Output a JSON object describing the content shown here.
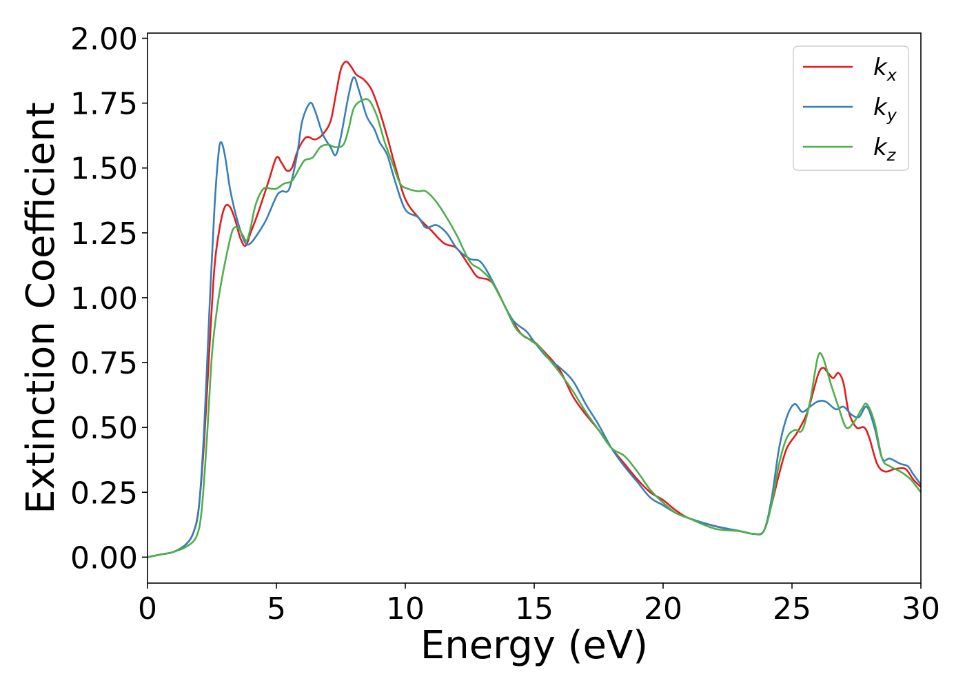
{
  "chart_data": {
    "type": "line",
    "title": "",
    "xlabel": "Energy (eV)",
    "ylabel": "Extinction Coefficient",
    "xlim": [
      0,
      30
    ],
    "ylim": [
      -0.1,
      2.02
    ],
    "xticks": [
      0,
      5,
      10,
      15,
      20,
      25,
      30
    ],
    "xtick_labels": [
      "0",
      "5",
      "10",
      "15",
      "20",
      "25",
      "30"
    ],
    "yticks": [
      0.0,
      0.25,
      0.5,
      0.75,
      1.0,
      1.25,
      1.5,
      1.75,
      2.0
    ],
    "ytick_labels": [
      "0.00",
      "0.25",
      "0.50",
      "0.75",
      "1.00",
      "1.25",
      "1.50",
      "1.75",
      "2.00"
    ],
    "grid": false,
    "legend_position": "top-right",
    "series": [
      {
        "name": "k",
        "subscript": "x",
        "color": "#e41a1c",
        "points": [
          [
            0,
            0
          ],
          [
            0.5,
            0.01
          ],
          [
            1,
            0.02
          ],
          [
            1.5,
            0.05
          ],
          [
            1.8,
            0.1
          ],
          [
            2,
            0.2
          ],
          [
            2.2,
            0.45
          ],
          [
            2.4,
            0.8
          ],
          [
            2.6,
            1.12
          ],
          [
            2.8,
            1.27
          ],
          [
            3,
            1.35
          ],
          [
            3.2,
            1.35
          ],
          [
            3.4,
            1.3
          ],
          [
            3.6,
            1.23
          ],
          [
            3.8,
            1.2
          ],
          [
            4,
            1.25
          ],
          [
            4.3,
            1.33
          ],
          [
            4.7,
            1.45
          ],
          [
            5,
            1.54
          ],
          [
            5.2,
            1.52
          ],
          [
            5.4,
            1.49
          ],
          [
            5.6,
            1.5
          ],
          [
            5.8,
            1.56
          ],
          [
            6,
            1.6
          ],
          [
            6.2,
            1.62
          ],
          [
            6.5,
            1.61
          ],
          [
            6.8,
            1.63
          ],
          [
            7.1,
            1.68
          ],
          [
            7.3,
            1.78
          ],
          [
            7.5,
            1.88
          ],
          [
            7.7,
            1.91
          ],
          [
            7.9,
            1.89
          ],
          [
            8.1,
            1.86
          ],
          [
            8.4,
            1.84
          ],
          [
            8.7,
            1.8
          ],
          [
            9,
            1.72
          ],
          [
            9.3,
            1.62
          ],
          [
            9.6,
            1.51
          ],
          [
            10,
            1.38
          ],
          [
            10.5,
            1.31
          ],
          [
            11,
            1.26
          ],
          [
            11.5,
            1.21
          ],
          [
            12,
            1.19
          ],
          [
            12.5,
            1.12
          ],
          [
            12.8,
            1.08
          ],
          [
            13.2,
            1.07
          ],
          [
            13.5,
            1.04
          ],
          [
            14,
            0.94
          ],
          [
            14.5,
            0.86
          ],
          [
            15,
            0.83
          ],
          [
            15.5,
            0.78
          ],
          [
            16,
            0.72
          ],
          [
            16.5,
            0.62
          ],
          [
            17,
            0.55
          ],
          [
            17.5,
            0.49
          ],
          [
            18,
            0.42
          ],
          [
            18.5,
            0.36
          ],
          [
            19,
            0.3
          ],
          [
            19.5,
            0.25
          ],
          [
            20,
            0.22
          ],
          [
            20.5,
            0.18
          ],
          [
            21,
            0.15
          ],
          [
            22,
            0.12
          ],
          [
            23,
            0.1
          ],
          [
            23.5,
            0.09
          ],
          [
            23.9,
            0.1
          ],
          [
            24.2,
            0.2
          ],
          [
            24.5,
            0.32
          ],
          [
            24.8,
            0.42
          ],
          [
            25.2,
            0.48
          ],
          [
            25.6,
            0.56
          ],
          [
            26,
            0.7
          ],
          [
            26.2,
            0.73
          ],
          [
            26.4,
            0.71
          ],
          [
            26.6,
            0.69
          ],
          [
            26.8,
            0.71
          ],
          [
            27,
            0.67
          ],
          [
            27.2,
            0.56
          ],
          [
            27.5,
            0.5
          ],
          [
            27.8,
            0.5
          ],
          [
            28,
            0.46
          ],
          [
            28.3,
            0.36
          ],
          [
            28.6,
            0.33
          ],
          [
            29,
            0.34
          ],
          [
            29.4,
            0.34
          ],
          [
            29.7,
            0.3
          ],
          [
            30,
            0.27
          ]
        ]
      },
      {
        "name": "k",
        "subscript": "y",
        "color": "#377eb8",
        "points": [
          [
            0,
            0
          ],
          [
            0.5,
            0.01
          ],
          [
            1,
            0.02
          ],
          [
            1.5,
            0.05
          ],
          [
            1.8,
            0.1
          ],
          [
            2,
            0.2
          ],
          [
            2.2,
            0.5
          ],
          [
            2.4,
            0.95
          ],
          [
            2.6,
            1.35
          ],
          [
            2.75,
            1.55
          ],
          [
            2.85,
            1.6
          ],
          [
            3,
            1.55
          ],
          [
            3.2,
            1.42
          ],
          [
            3.4,
            1.33
          ],
          [
            3.6,
            1.26
          ],
          [
            3.8,
            1.21
          ],
          [
            4,
            1.21
          ],
          [
            4.3,
            1.25
          ],
          [
            4.6,
            1.3
          ],
          [
            5,
            1.39
          ],
          [
            5.2,
            1.41
          ],
          [
            5.5,
            1.42
          ],
          [
            5.8,
            1.55
          ],
          [
            6,
            1.68
          ],
          [
            6.3,
            1.75
          ],
          [
            6.5,
            1.72
          ],
          [
            6.8,
            1.63
          ],
          [
            7.1,
            1.58
          ],
          [
            7.3,
            1.55
          ],
          [
            7.5,
            1.62
          ],
          [
            7.8,
            1.78
          ],
          [
            8,
            1.85
          ],
          [
            8.2,
            1.8
          ],
          [
            8.5,
            1.7
          ],
          [
            8.8,
            1.65
          ],
          [
            9,
            1.6
          ],
          [
            9.3,
            1.55
          ],
          [
            9.6,
            1.45
          ],
          [
            10,
            1.34
          ],
          [
            10.5,
            1.31
          ],
          [
            10.8,
            1.27
          ],
          [
            11.2,
            1.28
          ],
          [
            11.6,
            1.25
          ],
          [
            12,
            1.19
          ],
          [
            12.5,
            1.15
          ],
          [
            12.9,
            1.14
          ],
          [
            13.3,
            1.08
          ],
          [
            13.8,
            0.98
          ],
          [
            14.2,
            0.91
          ],
          [
            14.7,
            0.87
          ],
          [
            15,
            0.83
          ],
          [
            15.5,
            0.77
          ],
          [
            16,
            0.73
          ],
          [
            16.5,
            0.68
          ],
          [
            17,
            0.59
          ],
          [
            17.5,
            0.51
          ],
          [
            18,
            0.42
          ],
          [
            18.5,
            0.35
          ],
          [
            19,
            0.29
          ],
          [
            19.5,
            0.23
          ],
          [
            20,
            0.2
          ],
          [
            20.5,
            0.17
          ],
          [
            21,
            0.15
          ],
          [
            22,
            0.12
          ],
          [
            23,
            0.1
          ],
          [
            23.5,
            0.09
          ],
          [
            23.9,
            0.1
          ],
          [
            24.2,
            0.22
          ],
          [
            24.5,
            0.42
          ],
          [
            24.8,
            0.54
          ],
          [
            25.1,
            0.59
          ],
          [
            25.4,
            0.56
          ],
          [
            25.7,
            0.58
          ],
          [
            26,
            0.6
          ],
          [
            26.3,
            0.6
          ],
          [
            26.7,
            0.57
          ],
          [
            27,
            0.58
          ],
          [
            27.3,
            0.55
          ],
          [
            27.6,
            0.54
          ],
          [
            27.9,
            0.58
          ],
          [
            28.2,
            0.5
          ],
          [
            28.5,
            0.38
          ],
          [
            28.8,
            0.38
          ],
          [
            29.2,
            0.36
          ],
          [
            29.5,
            0.35
          ],
          [
            29.7,
            0.32
          ],
          [
            30,
            0.28
          ]
        ]
      },
      {
        "name": "k",
        "subscript": "z",
        "color": "#4daf4a",
        "points": [
          [
            0,
            0
          ],
          [
            0.5,
            0.01
          ],
          [
            1,
            0.02
          ],
          [
            1.5,
            0.04
          ],
          [
            1.9,
            0.08
          ],
          [
            2.1,
            0.18
          ],
          [
            2.3,
            0.45
          ],
          [
            2.5,
            0.78
          ],
          [
            2.7,
            0.96
          ],
          [
            2.9,
            1.08
          ],
          [
            3.1,
            1.18
          ],
          [
            3.3,
            1.26
          ],
          [
            3.5,
            1.27
          ],
          [
            3.7,
            1.24
          ],
          [
            3.85,
            1.22
          ],
          [
            4,
            1.27
          ],
          [
            4.2,
            1.36
          ],
          [
            4.5,
            1.42
          ],
          [
            4.8,
            1.42
          ],
          [
            5,
            1.42
          ],
          [
            5.3,
            1.44
          ],
          [
            5.6,
            1.45
          ],
          [
            5.9,
            1.5
          ],
          [
            6.1,
            1.53
          ],
          [
            6.4,
            1.54
          ],
          [
            6.7,
            1.58
          ],
          [
            7,
            1.59
          ],
          [
            7.3,
            1.58
          ],
          [
            7.6,
            1.59
          ],
          [
            7.8,
            1.65
          ],
          [
            8,
            1.73
          ],
          [
            8.3,
            1.76
          ],
          [
            8.6,
            1.76
          ],
          [
            8.9,
            1.7
          ],
          [
            9.2,
            1.6
          ],
          [
            9.5,
            1.52
          ],
          [
            9.8,
            1.44
          ],
          [
            10.1,
            1.42
          ],
          [
            10.5,
            1.41
          ],
          [
            10.8,
            1.41
          ],
          [
            11.2,
            1.37
          ],
          [
            11.6,
            1.31
          ],
          [
            12,
            1.24
          ],
          [
            12.5,
            1.14
          ],
          [
            12.9,
            1.11
          ],
          [
            13.3,
            1.07
          ],
          [
            13.8,
            0.98
          ],
          [
            14.3,
            0.88
          ],
          [
            14.8,
            0.84
          ],
          [
            15.2,
            0.81
          ],
          [
            15.6,
            0.76
          ],
          [
            16,
            0.71
          ],
          [
            16.5,
            0.64
          ],
          [
            17,
            0.56
          ],
          [
            17.5,
            0.49
          ],
          [
            18,
            0.42
          ],
          [
            18.5,
            0.39
          ],
          [
            19,
            0.33
          ],
          [
            19.5,
            0.26
          ],
          [
            20,
            0.21
          ],
          [
            20.5,
            0.17
          ],
          [
            21,
            0.15
          ],
          [
            22,
            0.11
          ],
          [
            23,
            0.1
          ],
          [
            23.5,
            0.09
          ],
          [
            23.9,
            0.1
          ],
          [
            24.2,
            0.2
          ],
          [
            24.5,
            0.36
          ],
          [
            24.8,
            0.46
          ],
          [
            25.1,
            0.49
          ],
          [
            25.4,
            0.49
          ],
          [
            25.7,
            0.6
          ],
          [
            26,
            0.77
          ],
          [
            26.2,
            0.77
          ],
          [
            26.5,
            0.67
          ],
          [
            26.8,
            0.58
          ],
          [
            27.1,
            0.5
          ],
          [
            27.4,
            0.52
          ],
          [
            27.7,
            0.57
          ],
          [
            27.9,
            0.59
          ],
          [
            28.2,
            0.52
          ],
          [
            28.5,
            0.38
          ],
          [
            28.8,
            0.35
          ],
          [
            29.2,
            0.33
          ],
          [
            29.6,
            0.3
          ],
          [
            30,
            0.25
          ]
        ]
      }
    ]
  }
}
